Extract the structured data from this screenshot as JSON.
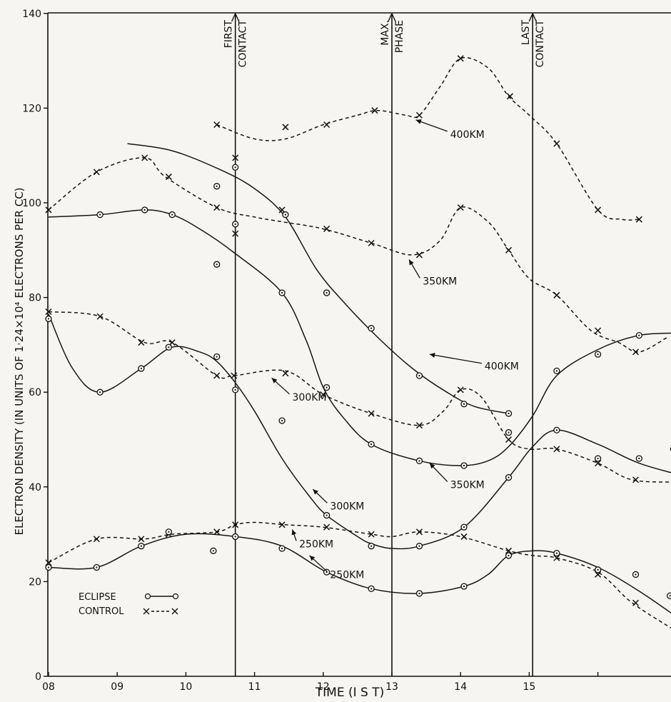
{
  "chart_data": {
    "type": "line",
    "xlabel": "TIME (I S T)",
    "ylabel": "ELECTRON DENSITY (IN UNITS OF 1·24×10⁴ ELECTRONS PER CC)",
    "xlim": [
      8,
      17.3
    ],
    "ylim": [
      0,
      140
    ],
    "x_ticks": [
      {
        "v": 8,
        "label": "08"
      },
      {
        "v": 9,
        "label": "09"
      },
      {
        "v": 10,
        "label": "10"
      },
      {
        "v": 11,
        "label": "11"
      },
      {
        "v": 12,
        "label": "12"
      },
      {
        "v": 13,
        "label": "13"
      },
      {
        "v": 14,
        "label": "14"
      },
      {
        "v": 15,
        "label": "15"
      },
      {
        "v": 16,
        "label": ""
      }
    ],
    "y_ticks": [
      0,
      20,
      40,
      60,
      80,
      100,
      120,
      140
    ],
    "events": [
      {
        "x": 10.72,
        "lines": [
          "FIRST",
          "CONTACT"
        ]
      },
      {
        "x": 13.0,
        "lines": [
          "MAX.",
          "PHASE"
        ]
      },
      {
        "x": 15.05,
        "lines": [
          "LAST",
          "CONTACT"
        ]
      }
    ],
    "legend": {
      "position": "bottom-left",
      "eclipse_label": "ECLIPSE",
      "control_label": "CONTROL"
    },
    "series": [
      {
        "kind": "control",
        "alt": "400KM",
        "points": [
          [
            10.45,
            116.5
          ],
          [
            11.0,
            113.5
          ],
          [
            11.45,
            113.5
          ],
          [
            12.0,
            116.5
          ],
          [
            12.5,
            118.5
          ],
          [
            12.8,
            119.5
          ],
          [
            13.2,
            118.5
          ],
          [
            13.4,
            118.5
          ],
          [
            13.7,
            124.5
          ],
          [
            14.0,
            130.5
          ],
          [
            14.4,
            128.5
          ],
          [
            14.7,
            122.5
          ],
          [
            15.0,
            118.5
          ],
          [
            15.4,
            112.5
          ],
          [
            16.0,
            98.5
          ],
          [
            16.35,
            96.5
          ],
          [
            16.6,
            96.5
          ]
        ],
        "markers": [
          [
            10.45,
            116.5
          ],
          [
            11.45,
            116
          ],
          [
            12.05,
            116.5
          ],
          [
            12.75,
            119.5
          ],
          [
            13.4,
            118.5
          ],
          [
            14.0,
            130.5
          ],
          [
            14.72,
            122.5
          ],
          [
            15.4,
            112.5
          ],
          [
            16.0,
            98.5
          ],
          [
            16.6,
            96.5
          ]
        ]
      },
      {
        "kind": "control",
        "alt": "350KM",
        "points": [
          [
            8.0,
            98.5
          ],
          [
            8.7,
            106.5
          ],
          [
            9.4,
            109.5
          ],
          [
            9.7,
            105.5
          ],
          [
            10.45,
            99.0
          ],
          [
            11.0,
            97.0
          ],
          [
            11.4,
            96.0
          ],
          [
            12.0,
            94.5
          ],
          [
            12.7,
            91.5
          ],
          [
            13.3,
            89.0
          ],
          [
            13.7,
            92.0
          ],
          [
            14.0,
            99.0
          ],
          [
            14.4,
            96.0
          ],
          [
            14.7,
            90.0
          ],
          [
            15.0,
            84.0
          ],
          [
            15.4,
            80.5
          ],
          [
            15.9,
            73.0
          ],
          [
            16.3,
            70.5
          ],
          [
            16.6,
            68.5
          ],
          [
            17.0,
            71.5
          ]
        ],
        "markers": [
          [
            8.0,
            98.5
          ],
          [
            8.7,
            106.5
          ],
          [
            9.4,
            109.5
          ],
          [
            9.75,
            105.5
          ],
          [
            10.45,
            99.0
          ],
          [
            10.72,
            109.5
          ],
          [
            10.72,
            93.5
          ],
          [
            11.4,
            98.5
          ],
          [
            12.05,
            94.5
          ],
          [
            12.7,
            91.5
          ],
          [
            13.4,
            89.0
          ],
          [
            14.0,
            99.0
          ],
          [
            14.7,
            90.0
          ],
          [
            15.4,
            80.5
          ],
          [
            16.0,
            73.0
          ],
          [
            16.55,
            68.5
          ]
        ]
      },
      {
        "kind": "control",
        "alt": "300KM",
        "points": [
          [
            8.0,
            77.0
          ],
          [
            8.75,
            76.0
          ],
          [
            9.4,
            70.5
          ],
          [
            9.8,
            70.5
          ],
          [
            10.45,
            63.5
          ],
          [
            10.7,
            63.5
          ],
          [
            11.45,
            64.5
          ],
          [
            12.0,
            59.5
          ],
          [
            12.7,
            55.5
          ],
          [
            13.4,
            53.0
          ],
          [
            13.75,
            56.0
          ],
          [
            14.0,
            60.5
          ],
          [
            14.3,
            59.0
          ],
          [
            14.7,
            50.0
          ],
          [
            15.0,
            48.0
          ],
          [
            15.4,
            48.0
          ],
          [
            16.0,
            45.0
          ],
          [
            16.5,
            41.5
          ],
          [
            17.2,
            41.0
          ]
        ],
        "markers": [
          [
            8.0,
            77.0
          ],
          [
            8.75,
            76.0
          ],
          [
            9.35,
            70.5
          ],
          [
            9.8,
            70.5
          ],
          [
            10.45,
            63.5
          ],
          [
            10.7,
            63.5
          ],
          [
            11.45,
            64.0
          ],
          [
            12.0,
            59.5
          ],
          [
            12.7,
            55.5
          ],
          [
            13.4,
            53.0
          ],
          [
            14.0,
            60.5
          ],
          [
            14.7,
            50.0
          ],
          [
            15.4,
            48.0
          ],
          [
            16.0,
            45.0
          ],
          [
            16.55,
            41.5
          ]
        ]
      },
      {
        "kind": "control",
        "alt": "250KM",
        "points": [
          [
            8.0,
            24.0
          ],
          [
            8.7,
            29.0
          ],
          [
            9.4,
            29.0
          ],
          [
            9.8,
            30.0
          ],
          [
            10.45,
            30.5
          ],
          [
            10.72,
            32.0
          ],
          [
            11.0,
            32.5
          ],
          [
            11.45,
            32.0
          ],
          [
            12.0,
            31.5
          ],
          [
            12.7,
            30.0
          ],
          [
            13.0,
            29.5
          ],
          [
            13.4,
            30.5
          ],
          [
            14.0,
            29.5
          ],
          [
            14.7,
            26.5
          ],
          [
            15.05,
            25.5
          ],
          [
            15.4,
            25.0
          ],
          [
            16.0,
            22.0
          ],
          [
            16.5,
            15.5
          ],
          [
            17.2,
            9.0
          ]
        ],
        "markers": [
          [
            8.0,
            24.0
          ],
          [
            8.7,
            29.0
          ],
          [
            9.35,
            29.0
          ],
          [
            9.75,
            30.0
          ],
          [
            10.45,
            30.5
          ],
          [
            10.72,
            32.0
          ],
          [
            11.4,
            32.0
          ],
          [
            12.05,
            31.5
          ],
          [
            12.7,
            30.0
          ],
          [
            13.4,
            30.5
          ],
          [
            14.05,
            29.5
          ],
          [
            14.7,
            26.5
          ],
          [
            15.4,
            25.0
          ],
          [
            16.0,
            21.5
          ],
          [
            16.55,
            15.5
          ]
        ]
      },
      {
        "kind": "eclipse",
        "alt": "400KM",
        "points": [
          [
            9.15,
            112.5
          ],
          [
            9.8,
            111.0
          ],
          [
            10.5,
            107.0
          ],
          [
            11.0,
            103.0
          ],
          [
            11.45,
            97.0
          ],
          [
            11.9,
            86.0
          ],
          [
            12.3,
            79.0
          ],
          [
            12.8,
            71.5
          ],
          [
            13.3,
            65.0
          ],
          [
            13.8,
            60.0
          ],
          [
            14.2,
            57.0
          ],
          [
            14.7,
            55.5
          ]
        ],
        "markers": [
          [
            10.72,
            107.5
          ],
          [
            11.45,
            97.5
          ],
          [
            12.05,
            81.0
          ],
          [
            12.7,
            73.5
          ],
          [
            13.4,
            63.5
          ],
          [
            14.05,
            57.5
          ],
          [
            14.7,
            55.5
          ]
        ]
      },
      {
        "kind": "eclipse",
        "alt": "350KM",
        "points": [
          [
            8.0,
            97.0
          ],
          [
            8.75,
            97.5
          ],
          [
            9.4,
            98.5
          ],
          [
            9.8,
            97.5
          ],
          [
            10.2,
            94.5
          ],
          [
            10.7,
            89.5
          ],
          [
            11.4,
            81.0
          ],
          [
            11.75,
            71.0
          ],
          [
            12.0,
            61.0
          ],
          [
            12.3,
            54.5
          ],
          [
            12.7,
            49.0
          ],
          [
            13.4,
            45.5
          ],
          [
            14.0,
            44.5
          ],
          [
            14.4,
            45.5
          ],
          [
            14.7,
            48.5
          ],
          [
            15.05,
            55.0
          ],
          [
            15.4,
            63.5
          ],
          [
            16.0,
            69.0
          ],
          [
            16.6,
            72.0
          ],
          [
            17.2,
            72.5
          ]
        ],
        "markers": [
          [
            8.75,
            97.5
          ],
          [
            9.4,
            98.5
          ],
          [
            9.8,
            97.5
          ],
          [
            10.45,
            87.0
          ],
          [
            10.45,
            103.5
          ],
          [
            10.72,
            95.5
          ],
          [
            11.4,
            81.0
          ],
          [
            12.05,
            81.0
          ],
          [
            12.05,
            61.0
          ],
          [
            12.7,
            49.0
          ],
          [
            13.4,
            45.5
          ],
          [
            14.05,
            44.5
          ],
          [
            14.7,
            51.5
          ],
          [
            15.4,
            64.5
          ],
          [
            16.0,
            68.0
          ],
          [
            16.6,
            72.0
          ],
          [
            17.2,
            73.0
          ]
        ]
      },
      {
        "kind": "eclipse",
        "alt": "300KM",
        "points": [
          [
            8.0,
            76.5
          ],
          [
            8.35,
            65.0
          ],
          [
            8.75,
            60.0
          ],
          [
            9.35,
            65.0
          ],
          [
            9.8,
            69.5
          ],
          [
            10.2,
            68.5
          ],
          [
            10.45,
            66.5
          ],
          [
            10.72,
            62.0
          ],
          [
            11.0,
            56.0
          ],
          [
            11.4,
            46.0
          ],
          [
            11.8,
            38.0
          ],
          [
            12.05,
            34.0
          ],
          [
            12.5,
            29.5
          ],
          [
            12.7,
            28.0
          ],
          [
            13.0,
            27.0
          ],
          [
            13.4,
            27.5
          ],
          [
            14.05,
            31.5
          ],
          [
            14.7,
            42.0
          ],
          [
            15.05,
            48.5
          ],
          [
            15.4,
            52.0
          ],
          [
            16.0,
            49.0
          ],
          [
            16.6,
            45.0
          ],
          [
            17.2,
            42.5
          ]
        ],
        "markers": [
          [
            8.0,
            75.5
          ],
          [
            8.75,
            60.0
          ],
          [
            9.35,
            65.0
          ],
          [
            9.75,
            69.5
          ],
          [
            10.45,
            67.5
          ],
          [
            10.72,
            60.5
          ],
          [
            11.4,
            54.0
          ],
          [
            12.05,
            34.0
          ],
          [
            12.7,
            27.5
          ],
          [
            13.4,
            27.5
          ],
          [
            14.05,
            31.5
          ],
          [
            14.7,
            42.0
          ],
          [
            15.4,
            52.0
          ],
          [
            16.0,
            46.0
          ],
          [
            16.6,
            46.0
          ],
          [
            17.1,
            48.0
          ]
        ]
      },
      {
        "kind": "eclipse",
        "alt": "250KM",
        "points": [
          [
            8.0,
            23.0
          ],
          [
            8.7,
            23.0
          ],
          [
            9.35,
            27.5
          ],
          [
            10.0,
            30.0
          ],
          [
            10.72,
            29.5
          ],
          [
            11.4,
            27.5
          ],
          [
            12.05,
            22.0
          ],
          [
            12.7,
            18.5
          ],
          [
            13.4,
            17.5
          ],
          [
            14.05,
            19.0
          ],
          [
            14.4,
            21.5
          ],
          [
            14.7,
            25.5
          ],
          [
            15.05,
            26.5
          ],
          [
            15.4,
            26.0
          ],
          [
            16.0,
            23.0
          ],
          [
            16.6,
            18.0
          ],
          [
            17.2,
            12.0
          ]
        ],
        "markers": [
          [
            8.0,
            23.0
          ],
          [
            8.7,
            23.0
          ],
          [
            9.35,
            27.5
          ],
          [
            9.75,
            30.5
          ],
          [
            10.4,
            26.5
          ],
          [
            10.72,
            29.5
          ],
          [
            11.4,
            27.0
          ],
          [
            12.05,
            22.0
          ],
          [
            12.7,
            18.5
          ],
          [
            13.4,
            17.5
          ],
          [
            14.05,
            19.0
          ],
          [
            14.7,
            25.5
          ],
          [
            15.4,
            26.0
          ],
          [
            16.0,
            22.5
          ],
          [
            16.55,
            21.5
          ],
          [
            17.05,
            17.0
          ]
        ]
      }
    ],
    "annotations": [
      {
        "text": "400KM",
        "series_kind": "control",
        "x": 13.85,
        "y": 114.5,
        "tip": [
          13.35,
          117.5
        ]
      },
      {
        "text": "350KM",
        "series_kind": "control",
        "x": 13.45,
        "y": 83.5,
        "tip": [
          13.25,
          88.0
        ]
      },
      {
        "text": "300KM",
        "series_kind": "control",
        "x": 11.55,
        "y": 59.0,
        "tip": [
          11.25,
          63.0
        ]
      },
      {
        "text": "250KM",
        "series_kind": "control",
        "x": 11.65,
        "y": 28.0,
        "tip": [
          11.55,
          31.0
        ]
      },
      {
        "text": "400KM",
        "series_kind": "eclipse",
        "x": 14.35,
        "y": 65.5,
        "tip": [
          13.55,
          68.0
        ]
      },
      {
        "text": "350KM",
        "series_kind": "eclipse",
        "x": 13.85,
        "y": 40.5,
        "tip": [
          13.55,
          45.0
        ]
      },
      {
        "text": "300KM",
        "series_kind": "eclipse",
        "x": 12.1,
        "y": 36.0,
        "tip": [
          11.85,
          39.5
        ]
      },
      {
        "text": "250KM",
        "series_kind": "eclipse",
        "x": 12.1,
        "y": 21.5,
        "tip": [
          11.8,
          25.5
        ]
      }
    ]
  }
}
